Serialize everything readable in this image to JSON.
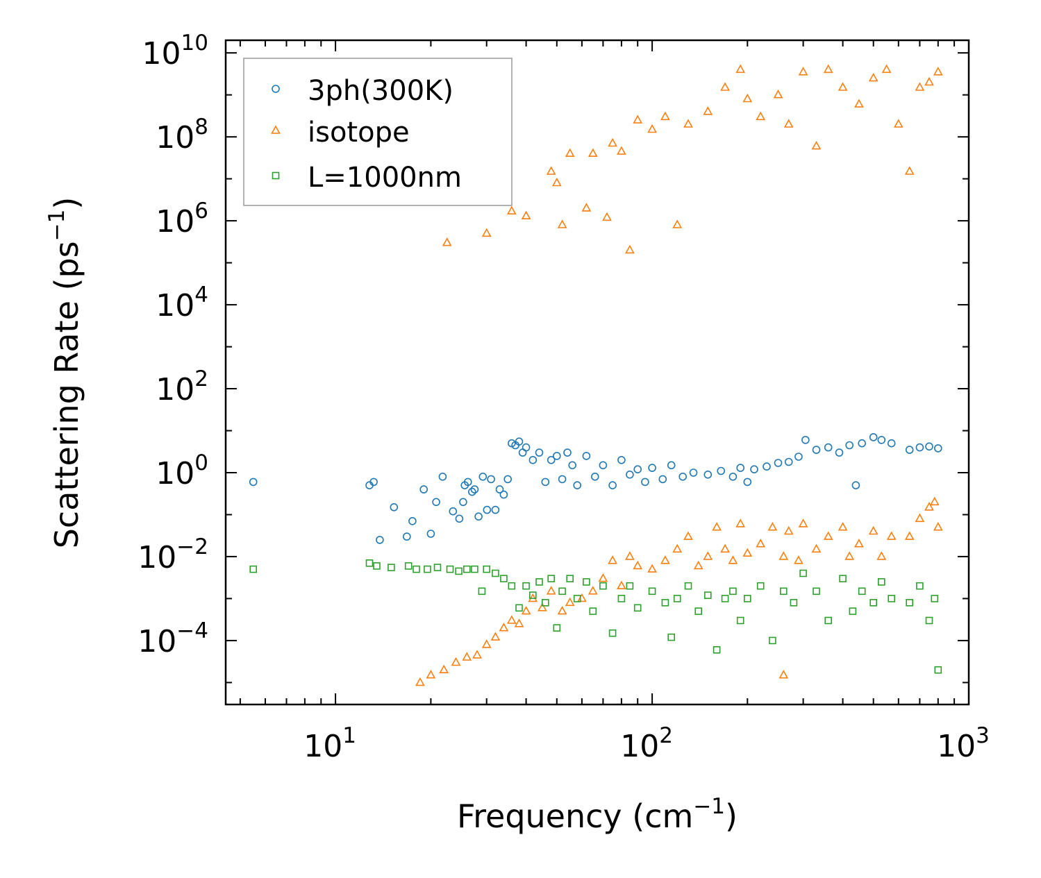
{
  "chart_data": {
    "type": "scatter",
    "title": "",
    "xlabel": {
      "base": "Frequency (cm",
      "sup": "−1",
      "close": ")"
    },
    "ylabel": {
      "base": "Scattering Rate (ps",
      "sup": "−1",
      "close": ")"
    },
    "xscale": "log",
    "yscale": "log",
    "xlim": [
      4.5,
      1000
    ],
    "ylim": [
      3e-06,
      20000000000.0
    ],
    "x_ticks": [
      {
        "value": 10,
        "base": "10",
        "exp": "1"
      },
      {
        "value": 100,
        "base": "10",
        "exp": "2"
      },
      {
        "value": 1000,
        "base": "10",
        "exp": "3"
      }
    ],
    "y_ticks": [
      {
        "value": 0.0001,
        "base": "10",
        "exp": "−4"
      },
      {
        "value": 0.01,
        "base": "10",
        "exp": "−2"
      },
      {
        "value": 1,
        "base": "10",
        "exp": "0"
      },
      {
        "value": 100,
        "base": "10",
        "exp": "2"
      },
      {
        "value": 10000.0,
        "base": "10",
        "exp": "4"
      },
      {
        "value": 1000000.0,
        "base": "10",
        "exp": "6"
      },
      {
        "value": 100000000.0,
        "base": "10",
        "exp": "8"
      },
      {
        "value": 10000000000.0,
        "base": "10",
        "exp": "10"
      }
    ],
    "legend_position": "top-left",
    "series": [
      {
        "name": "3ph(300K)",
        "marker": "circle",
        "color": "#1f77b4",
        "points": [
          [
            5.5,
            0.6
          ],
          [
            12.8,
            0.5
          ],
          [
            13.2,
            0.6
          ],
          [
            13.8,
            0.025
          ],
          [
            15.3,
            0.15
          ],
          [
            16.8,
            0.03
          ],
          [
            17.5,
            0.07
          ],
          [
            19.0,
            0.4
          ],
          [
            20.0,
            0.035
          ],
          [
            20.8,
            0.2
          ],
          [
            21.8,
            0.8
          ],
          [
            23.5,
            0.12
          ],
          [
            24.6,
            0.08
          ],
          [
            25.3,
            0.2
          ],
          [
            25.6,
            0.5
          ],
          [
            26.2,
            0.6
          ],
          [
            27.0,
            0.35
          ],
          [
            27.5,
            0.4
          ],
          [
            28.3,
            0.09
          ],
          [
            29.2,
            0.8
          ],
          [
            30.1,
            0.13
          ],
          [
            31.0,
            0.7
          ],
          [
            32.0,
            0.13
          ],
          [
            33.0,
            0.4
          ],
          [
            34.0,
            0.3
          ],
          [
            35.0,
            0.7
          ],
          [
            36.0,
            5.0
          ],
          [
            37.0,
            4.5
          ],
          [
            38.0,
            5.5
          ],
          [
            39.0,
            3.0
          ],
          [
            40.0,
            4.0
          ],
          [
            42.0,
            2.0
          ],
          [
            44.0,
            3.0
          ],
          [
            46.0,
            0.6
          ],
          [
            48.0,
            2.0
          ],
          [
            50.0,
            2.5
          ],
          [
            52.0,
            0.7
          ],
          [
            54.0,
            3.0
          ],
          [
            56.0,
            1.5
          ],
          [
            58.0,
            0.5
          ],
          [
            62.0,
            2.5
          ],
          [
            66.0,
            0.8
          ],
          [
            70.0,
            1.5
          ],
          [
            75.0,
            0.5
          ],
          [
            80.0,
            2.0
          ],
          [
            85.0,
            0.9
          ],
          [
            90.0,
            1.2
          ],
          [
            95.0,
            0.6
          ],
          [
            100.0,
            1.3
          ],
          [
            108.0,
            0.7
          ],
          [
            115.0,
            1.5
          ],
          [
            125.0,
            0.8
          ],
          [
            135.0,
            1.0
          ],
          [
            150.0,
            0.9
          ],
          [
            165.0,
            1.1
          ],
          [
            180.0,
            0.8
          ],
          [
            190.0,
            1.3
          ],
          [
            200.0,
            0.6
          ],
          [
            210.0,
            1.2
          ],
          [
            230.0,
            1.4
          ],
          [
            250.0,
            1.7
          ],
          [
            270.0,
            1.8
          ],
          [
            290.0,
            2.4
          ],
          [
            305.0,
            6.0
          ],
          [
            330.0,
            3.5
          ],
          [
            360.0,
            4.0
          ],
          [
            390.0,
            3.0
          ],
          [
            420.0,
            4.5
          ],
          [
            440.0,
            0.5
          ],
          [
            460.0,
            5.0
          ],
          [
            500.0,
            7.0
          ],
          [
            530.0,
            6.0
          ],
          [
            570.0,
            5.0
          ],
          [
            650.0,
            3.5
          ],
          [
            700.0,
            4.0
          ],
          [
            750.0,
            4.2
          ],
          [
            800.0,
            3.8
          ]
        ]
      },
      {
        "name": "isotope",
        "marker": "triangle",
        "color": "#ff7f0e",
        "points": [
          [
            22.5,
            300000.0
          ],
          [
            30.0,
            500000.0
          ],
          [
            36.0,
            1700000.0
          ],
          [
            40.0,
            1300000.0
          ],
          [
            48.0,
            15000000.0
          ],
          [
            50.0,
            8000000.0
          ],
          [
            52.0,
            800000.0
          ],
          [
            55.0,
            40000000.0
          ],
          [
            62.0,
            2000000.0
          ],
          [
            65.0,
            40000000.0
          ],
          [
            72.0,
            1200000.0
          ],
          [
            75.0,
            70000000.0
          ],
          [
            80.0,
            45000000.0
          ],
          [
            85.0,
            200000.0
          ],
          [
            90.0,
            250000000.0
          ],
          [
            100.0,
            150000000.0
          ],
          [
            110.0,
            300000000.0
          ],
          [
            120.0,
            800000.0
          ],
          [
            130.0,
            200000000.0
          ],
          [
            150.0,
            400000000.0
          ],
          [
            170.0,
            1500000000.0
          ],
          [
            190.0,
            4000000000.0
          ],
          [
            200.0,
            800000000.0
          ],
          [
            220.0,
            300000000.0
          ],
          [
            250.0,
            1000000000.0
          ],
          [
            270.0,
            200000000.0
          ],
          [
            300.0,
            3500000000.0
          ],
          [
            330.0,
            60000000.0
          ],
          [
            360.0,
            4000000000.0
          ],
          [
            400.0,
            1500000000.0
          ],
          [
            450.0,
            600000000.0
          ],
          [
            500.0,
            2500000000.0
          ],
          [
            550.0,
            4000000000.0
          ],
          [
            600.0,
            200000000.0
          ],
          [
            650.0,
            15000000.0
          ],
          [
            700.0,
            1500000000.0
          ],
          [
            750.0,
            2000000000.0
          ],
          [
            800.0,
            3500000000.0
          ],
          [
            18.5,
            1e-05
          ],
          [
            20.0,
            1.5e-05
          ],
          [
            22.0,
            2e-05
          ],
          [
            24.0,
            3e-05
          ],
          [
            26.0,
            4e-05
          ],
          [
            28.0,
            4.5e-05
          ],
          [
            30.0,
            8e-05
          ],
          [
            32.0,
            0.00012
          ],
          [
            34.0,
            0.0002
          ],
          [
            36.0,
            0.0003
          ],
          [
            38.0,
            0.00025
          ],
          [
            40.0,
            0.0005
          ],
          [
            42.0,
            0.001
          ],
          [
            45.0,
            0.0006
          ],
          [
            48.0,
            0.0015
          ],
          [
            52.0,
            0.0005
          ],
          [
            55.0,
            0.0008
          ],
          [
            60.0,
            0.001
          ],
          [
            65.0,
            0.0015
          ],
          [
            70.0,
            0.003
          ],
          [
            75.0,
            0.008
          ],
          [
            80.0,
            0.002
          ],
          [
            85.0,
            0.01
          ],
          [
            90.0,
            0.006
          ],
          [
            100.0,
            0.005
          ],
          [
            110.0,
            0.008
          ],
          [
            120.0,
            0.015
          ],
          [
            130.0,
            0.03
          ],
          [
            140.0,
            0.006
          ],
          [
            150.0,
            0.01
          ],
          [
            160.0,
            0.05
          ],
          [
            170.0,
            0.015
          ],
          [
            180.0,
            0.008
          ],
          [
            190.0,
            0.06
          ],
          [
            200.0,
            0.012
          ],
          [
            220.0,
            0.02
          ],
          [
            240.0,
            0.05
          ],
          [
            260.0,
            0.01
          ],
          [
            270.0,
            0.04
          ],
          [
            290.0,
            0.008
          ],
          [
            300.0,
            0.06
          ],
          [
            330.0,
            0.015
          ],
          [
            360.0,
            0.03
          ],
          [
            400.0,
            0.05
          ],
          [
            420.0,
            0.01
          ],
          [
            450.0,
            0.02
          ],
          [
            500.0,
            0.04
          ],
          [
            530.0,
            0.01
          ],
          [
            570.0,
            0.03
          ],
          [
            650.0,
            0.03
          ],
          [
            700.0,
            0.08
          ],
          [
            750.0,
            0.15
          ],
          [
            780.0,
            0.2
          ],
          [
            800.0,
            0.05
          ],
          [
            260.0,
            1.5e-05
          ]
        ]
      },
      {
        "name": "L=1000nm",
        "marker": "square",
        "color": "#2ca02c",
        "points": [
          [
            5.5,
            0.005
          ],
          [
            12.8,
            0.007
          ],
          [
            13.5,
            0.006
          ],
          [
            15.0,
            0.0055
          ],
          [
            17.0,
            0.006
          ],
          [
            18.0,
            0.005
          ],
          [
            19.5,
            0.005
          ],
          [
            21.0,
            0.0055
          ],
          [
            23.0,
            0.005
          ],
          [
            24.5,
            0.0045
          ],
          [
            26.0,
            0.005
          ],
          [
            27.5,
            0.005
          ],
          [
            29.0,
            0.0015
          ],
          [
            30.0,
            0.005
          ],
          [
            32.0,
            0.004
          ],
          [
            34.0,
            0.003
          ],
          [
            36.0,
            0.002
          ],
          [
            38.0,
            0.0006
          ],
          [
            40.0,
            0.002
          ],
          [
            42.0,
            0.0012
          ],
          [
            44.0,
            0.0025
          ],
          [
            46.0,
            0.0008
          ],
          [
            48.0,
            0.003
          ],
          [
            50.0,
            0.0002
          ],
          [
            52.0,
            0.0015
          ],
          [
            55.0,
            0.003
          ],
          [
            58.0,
            0.001
          ],
          [
            62.0,
            0.0025
          ],
          [
            65.0,
            0.0005
          ],
          [
            70.0,
            0.002
          ],
          [
            75.0,
            0.00015
          ],
          [
            80.0,
            0.001
          ],
          [
            85.0,
            0.002
          ],
          [
            90.0,
            0.0006
          ],
          [
            100.0,
            0.0015
          ],
          [
            110.0,
            0.0008
          ],
          [
            115.0,
            0.00012
          ],
          [
            120.0,
            0.001
          ],
          [
            130.0,
            0.002
          ],
          [
            140.0,
            0.0005
          ],
          [
            150.0,
            0.0012
          ],
          [
            160.0,
            6e-05
          ],
          [
            170.0,
            0.001
          ],
          [
            180.0,
            0.0015
          ],
          [
            190.0,
            0.0003
          ],
          [
            200.0,
            0.001
          ],
          [
            220.0,
            0.002
          ],
          [
            240.0,
            0.0001
          ],
          [
            260.0,
            0.0015
          ],
          [
            280.0,
            0.0008
          ],
          [
            300.0,
            0.004
          ],
          [
            330.0,
            0.0015
          ],
          [
            360.0,
            0.0003
          ],
          [
            400.0,
            0.003
          ],
          [
            430.0,
            0.0005
          ],
          [
            460.0,
            0.0015
          ],
          [
            500.0,
            0.0008
          ],
          [
            530.0,
            0.0025
          ],
          [
            570.0,
            0.001
          ],
          [
            650.0,
            0.0008
          ],
          [
            700.0,
            0.002
          ],
          [
            750.0,
            0.0003
          ],
          [
            780.0,
            0.001
          ],
          [
            800.0,
            2e-05
          ]
        ]
      }
    ]
  }
}
